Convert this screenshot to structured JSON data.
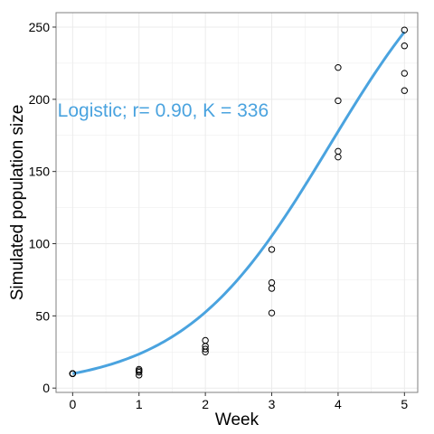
{
  "chart_data": {
    "type": "scatter",
    "title": "",
    "xlabel": "Week",
    "ylabel": "Simulated population size",
    "xlim": [
      -0.25,
      5.2
    ],
    "ylim": [
      -3,
      260
    ],
    "xticks": [
      0,
      1,
      2,
      3,
      4,
      5
    ],
    "xtick_labels": [
      "0",
      "1",
      "2",
      "3",
      "4",
      "5"
    ],
    "yticks": [
      0,
      50,
      100,
      150,
      200,
      250
    ],
    "ytick_labels": [
      "0",
      "50",
      "100",
      "150",
      "200",
      "250"
    ],
    "grid": true,
    "legend": "none",
    "points": {
      "x": [
        0,
        0,
        0,
        0,
        1,
        1,
        1,
        1,
        2,
        2,
        2,
        2,
        3,
        3,
        3,
        3,
        4,
        4,
        4,
        4,
        5,
        5,
        5,
        5
      ],
      "y": [
        10,
        10,
        10,
        10,
        9,
        11,
        12,
        13,
        25,
        27,
        29,
        33,
        52,
        69,
        73,
        96,
        160,
        164,
        199,
        222,
        206,
        218,
        237,
        248
      ]
    },
    "fit_line": {
      "model": "logistic",
      "r": 0.9,
      "K": 336,
      "N0": 10,
      "color": "#4aa3df"
    },
    "annotation": {
      "text": "Logistic; r= 0.90, K = 336",
      "x": -0.2,
      "y": 200,
      "color": "#4aa3df"
    },
    "colors": {
      "grid": "#ebebeb",
      "border": "#7f7f7f",
      "points": "#000000"
    }
  }
}
